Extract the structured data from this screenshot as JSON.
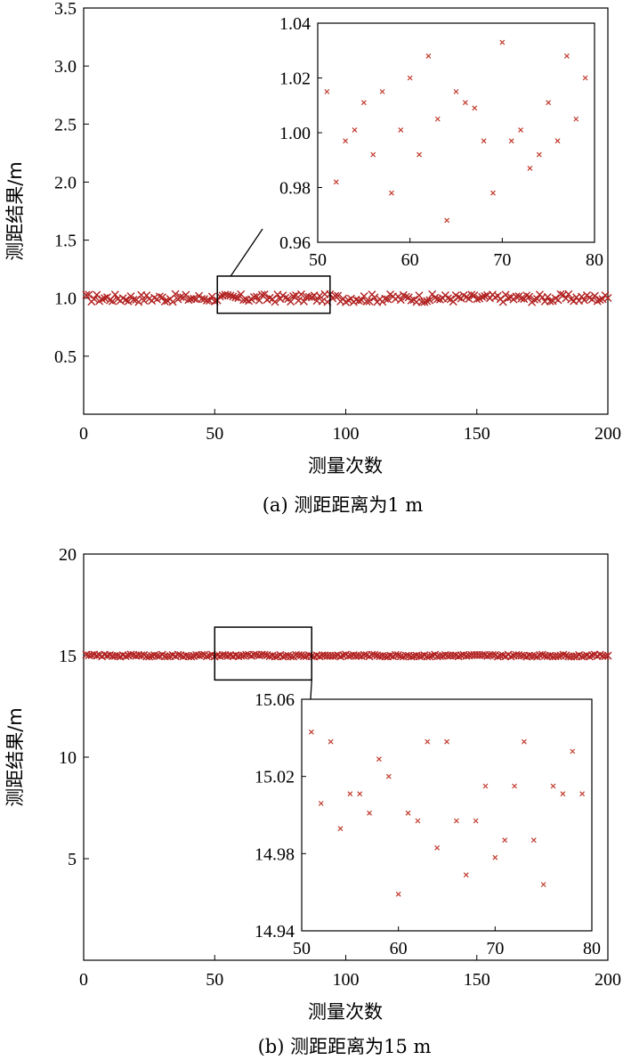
{
  "chart_data": [
    {
      "type": "scatter",
      "caption": "(a) 测距距离为1 m",
      "xlabel": "测量次数",
      "ylabel": "测距结果/m",
      "xlim": [
        0,
        200
      ],
      "ylim": [
        0,
        3.5
      ],
      "xticks": [
        "0",
        "50",
        "100",
        "150",
        "200"
      ],
      "yticks": [
        "0.5",
        "1.0",
        "1.5",
        "2.0",
        "2.5",
        "3.0",
        "3.5"
      ],
      "marker_color": "#b22222",
      "series_noise": {
        "count": 200,
        "center": 1.0,
        "spread": 0.035
      },
      "zoom_box": {
        "x_range": [
          51,
          94
        ],
        "y_range": [
          0.87,
          1.19
        ]
      },
      "inset": {
        "xlim": [
          50,
          80
        ],
        "ylim": [
          0.96,
          1.04
        ],
        "xticks": [
          "50",
          "60",
          "70",
          "80"
        ],
        "yticks": [
          "0.96",
          "0.98",
          "1.00",
          "1.02",
          "1.04"
        ],
        "x": [
          51,
          52,
          53,
          54,
          55,
          56,
          57,
          58,
          59,
          60,
          61,
          62,
          63,
          64,
          65,
          66,
          67,
          68,
          69,
          70,
          71,
          72,
          73,
          74,
          75,
          76,
          77,
          78,
          79
        ],
        "y": [
          1.015,
          0.982,
          0.997,
          1.001,
          1.011,
          0.992,
          1.015,
          0.978,
          1.001,
          1.02,
          0.992,
          1.028,
          1.005,
          0.968,
          1.015,
          1.011,
          1.009,
          0.997,
          0.978,
          1.033,
          0.997,
          1.001,
          0.987,
          0.992,
          1.011,
          0.997,
          1.028,
          1.005,
          1.02
        ]
      }
    },
    {
      "type": "scatter",
      "caption": "(b)  测距距离为15 m",
      "xlabel": "测量次数",
      "ylabel": "测距结果/m",
      "xlim": [
        0,
        200
      ],
      "ylim": [
        0,
        20
      ],
      "xticks": [
        "0",
        "50",
        "100",
        "150",
        "200"
      ],
      "yticks": [
        "5",
        "10",
        "15",
        "20"
      ],
      "marker_color": "#b22222",
      "series_noise": {
        "count": 200,
        "center": 15.0,
        "spread": 0.05
      },
      "zoom_box": {
        "x_range": [
          50,
          87
        ],
        "y_range": [
          13.8,
          16.4
        ]
      },
      "inset": {
        "xlim": [
          50,
          80
        ],
        "ylim": [
          14.94,
          15.06
        ],
        "xticks": [
          "50",
          "60",
          "70",
          "80"
        ],
        "yticks": [
          "14.94",
          "14.98",
          "15.02",
          "15.06"
        ],
        "x": [
          51,
          52,
          53,
          54,
          55,
          56,
          57,
          58,
          59,
          60,
          61,
          62,
          63,
          64,
          65,
          66,
          67,
          68,
          69,
          70,
          71,
          72,
          73,
          74,
          75,
          76,
          77,
          78,
          79
        ],
        "y": [
          15.043,
          15.006,
          15.038,
          14.993,
          15.011,
          15.011,
          15.001,
          15.029,
          15.02,
          14.959,
          15.001,
          14.997,
          15.038,
          14.983,
          15.038,
          14.997,
          14.969,
          14.997,
          15.015,
          14.978,
          14.987,
          15.015,
          15.038,
          14.987,
          14.964,
          15.015,
          15.011,
          15.033,
          15.011
        ]
      }
    }
  ]
}
